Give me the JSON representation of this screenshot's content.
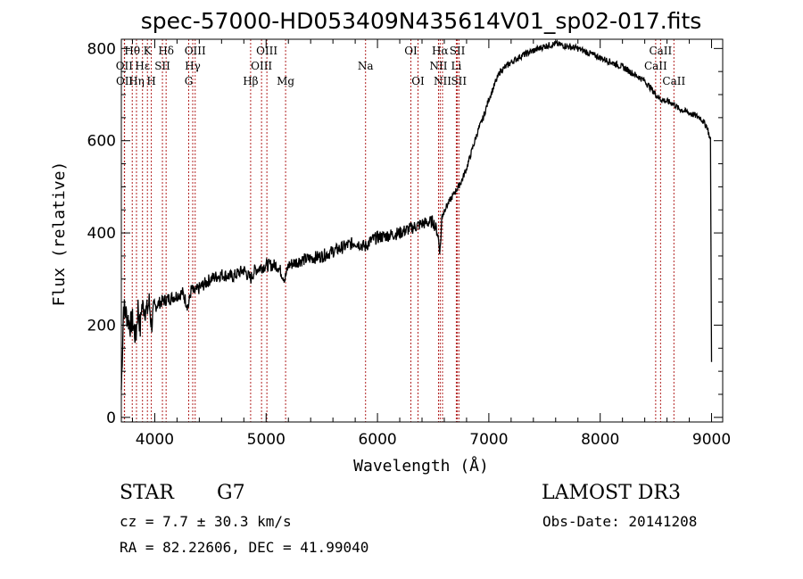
{
  "chart_data": {
    "type": "line",
    "title": "spec-57000-HD053409N435614V01_sp02-017.fits",
    "xlabel": "Wavelength (Å)",
    "ylabel": "Flux (relative)",
    "xlim": [
      3700,
      9100
    ],
    "ylim": [
      -10,
      820
    ],
    "xticks": [
      4000,
      5000,
      6000,
      7000,
      8000,
      9000
    ],
    "yticks": [
      0,
      200,
      400,
      600,
      800
    ],
    "series": [
      {
        "name": "flux",
        "x": [
          3700,
          3720,
          3750,
          3780,
          3800,
          3830,
          3850,
          3870,
          3880,
          3900,
          3930,
          3950,
          3970,
          4000,
          4050,
          4100,
          4150,
          4200,
          4250,
          4300,
          4330,
          4350,
          4400,
          4450,
          4500,
          4600,
          4700,
          4800,
          4860,
          4900,
          5000,
          5100,
          5170,
          5200,
          5300,
          5400,
          5500,
          5600,
          5700,
          5800,
          5890,
          5950,
          6000,
          6100,
          6200,
          6300,
          6400,
          6500,
          6540,
          6562,
          6580,
          6600,
          6650,
          6700,
          6750,
          6800,
          6850,
          6900,
          6950,
          7000,
          7050,
          7100,
          7200,
          7300,
          7400,
          7500,
          7600,
          7700,
          7800,
          7900,
          8000,
          8100,
          8200,
          8300,
          8400,
          8500,
          8542,
          8600,
          8662,
          8700,
          8800,
          8900,
          8960,
          8990,
          9000
        ],
        "y": [
          60,
          240,
          220,
          200,
          210,
          170,
          240,
          190,
          240,
          240,
          230,
          250,
          200,
          240,
          250,
          255,
          260,
          265,
          270,
          240,
          280,
          270,
          280,
          290,
          300,
          310,
          305,
          320,
          300,
          320,
          330,
          330,
          300,
          330,
          340,
          345,
          350,
          360,
          370,
          380,
          370,
          385,
          390,
          395,
          400,
          410,
          420,
          425,
          400,
          360,
          440,
          450,
          470,
          490,
          510,
          540,
          580,
          620,
          650,
          690,
          720,
          750,
          770,
          785,
          795,
          805,
          810,
          805,
          800,
          790,
          780,
          770,
          760,
          745,
          730,
          700,
          690,
          685,
          680,
          670,
          660,
          650,
          630,
          600,
          120
        ]
      }
    ],
    "spectral_lines": [
      {
        "label": "Hθ",
        "wavelength": 3798,
        "row": 1
      },
      {
        "label": "OII",
        "wavelength": 3727,
        "row": 2
      },
      {
        "label": "OII",
        "wavelength": 3729,
        "row": 3
      },
      {
        "label": "Hε",
        "wavelength": 3890,
        "row": 2
      },
      {
        "label": "Hη",
        "wavelength": 3836,
        "row": 3
      },
      {
        "label": "K",
        "wavelength": 3934,
        "row": 1
      },
      {
        "label": "H",
        "wavelength": 3969,
        "row": 3
      },
      {
        "label": "SII",
        "wavelength": 4069,
        "row": 2
      },
      {
        "label": "Hδ",
        "wavelength": 4102,
        "row": 1
      },
      {
        "label": "OIII",
        "wavelength": 4363,
        "row": 1
      },
      {
        "label": "Hγ",
        "wavelength": 4341,
        "row": 2
      },
      {
        "label": "G",
        "wavelength": 4305,
        "row": 3
      },
      {
        "label": "Hβ",
        "wavelength": 4861,
        "row": 3
      },
      {
        "label": "OIII",
        "wavelength": 5007,
        "row": 1
      },
      {
        "label": "OIII",
        "wavelength": 4959,
        "row": 2
      },
      {
        "label": "Mg",
        "wavelength": 5175,
        "row": 3
      },
      {
        "label": "Na",
        "wavelength": 5893,
        "row": 2
      },
      {
        "label": "OI",
        "wavelength": 6300,
        "row": 1
      },
      {
        "label": "OI",
        "wavelength": 6364,
        "row": 3
      },
      {
        "label": "Hα",
        "wavelength": 6563,
        "row": 1
      },
      {
        "label": "NII",
        "wavelength": 6548,
        "row": 2
      },
      {
        "label": "NII",
        "wavelength": 6584,
        "row": 3
      },
      {
        "label": "SII",
        "wavelength": 6717,
        "row": 1
      },
      {
        "label": "Li",
        "wavelength": 6708,
        "row": 2
      },
      {
        "label": "SII",
        "wavelength": 6731,
        "row": 3
      },
      {
        "label": "CaII",
        "wavelength": 8542,
        "row": 1
      },
      {
        "label": "CaII",
        "wavelength": 8498,
        "row": 2
      },
      {
        "label": "CaII",
        "wavelength": 8662,
        "row": 3
      }
    ]
  },
  "info": {
    "class": "STAR",
    "subclass": "G7",
    "survey": "LAMOST DR3",
    "cz": "cz = 7.7 ± 30.3 km/s",
    "obs_date": "Obs-Date: 20141208",
    "coords": "RA =  82.22606, DEC =  41.99040"
  },
  "colors": {
    "line_marker": "#b22222",
    "spectrum": "#000000"
  }
}
